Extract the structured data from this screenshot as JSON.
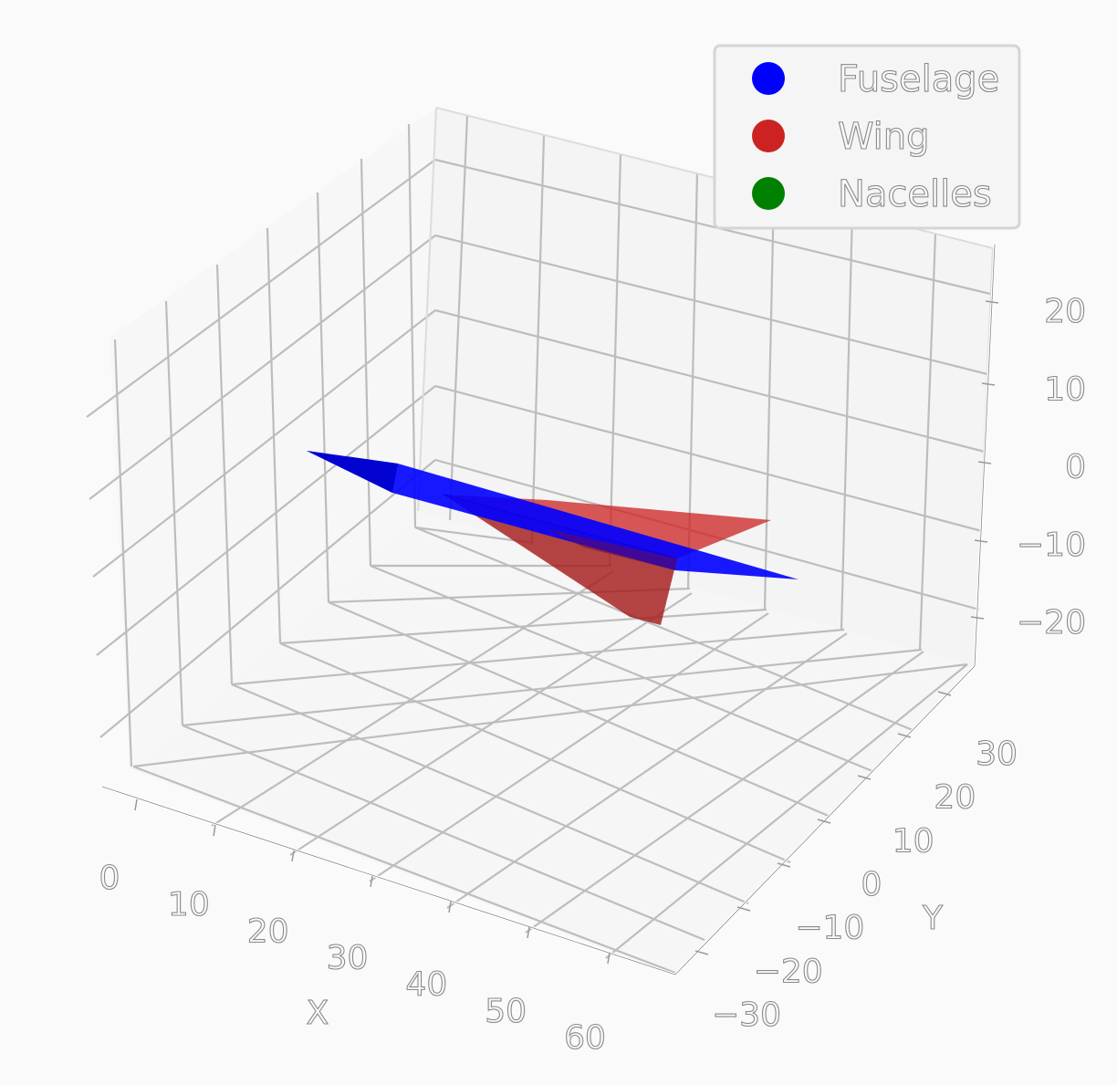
{
  "chart_data": {
    "type": "surface3d",
    "title": "",
    "xlabel": "X",
    "ylabel": "Y",
    "zlabel": "",
    "xlim": [
      0,
      65
    ],
    "ylim": [
      -35,
      35
    ],
    "zlim": [
      -25,
      25
    ],
    "grid": true,
    "legend_position": "top-right",
    "x_ticks": [
      0,
      10,
      20,
      30,
      40,
      50,
      60
    ],
    "y_ticks": [
      -30,
      -20,
      -10,
      0,
      10,
      20,
      30
    ],
    "z_ticks": [
      -20,
      -10,
      0,
      10,
      20
    ],
    "x_tick_labels": [
      "0",
      "10",
      "20",
      "30",
      "40",
      "50",
      "60"
    ],
    "y_tick_labels": [
      "−30",
      "−20",
      "−10",
      "0",
      "10",
      "20",
      "30"
    ],
    "z_tick_labels": [
      "−20",
      "−10",
      "0",
      "10",
      "20"
    ],
    "series": [
      {
        "name": "Fuselage",
        "color": "#0000ff",
        "surface": "flat plate in the X–Z plane",
        "outline": [
          [
            0,
            0,
            0
          ],
          [
            55,
            0,
            -2
          ],
          [
            60,
            0,
            -5
          ],
          [
            5,
            0,
            2
          ]
        ]
      },
      {
        "name": "Wing",
        "color": "#cc2222",
        "surface": "delta wing in the X–Y plane",
        "outline": [
          [
            20,
            0,
            0
          ],
          [
            50,
            18,
            0
          ],
          [
            50,
            16,
            -8
          ],
          [
            38,
            0,
            -4
          ],
          [
            48,
            -18,
            0
          ]
        ]
      },
      {
        "name": "Nacelles",
        "color": "#008000",
        "surface": "not visible",
        "outline": []
      }
    ]
  }
}
